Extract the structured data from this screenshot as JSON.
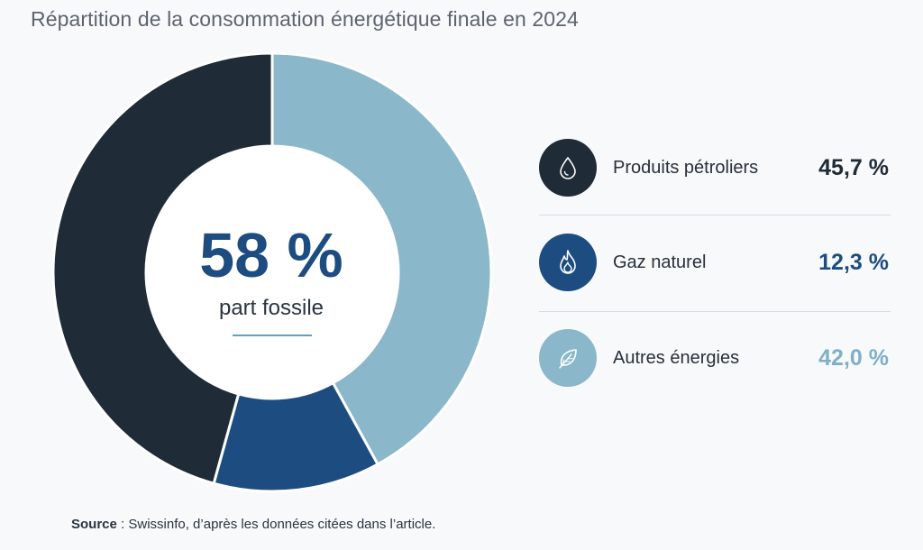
{
  "title": "Répartition de la consommation énergétique finale en 2024",
  "center": {
    "value": "58 %",
    "label": "part fossile"
  },
  "legend": [
    {
      "label": "Produits pétroliers",
      "value_text": "45,7 %",
      "icon": "drop-icon",
      "circle_color": "#1f2b36",
      "value_color": "#1f2b36"
    },
    {
      "label": "Gaz naturel",
      "value_text": "12,3 %",
      "icon": "flame-icon",
      "circle_color": "#1d4d80",
      "value_color": "#1d4d80"
    },
    {
      "label": "Autres énergies",
      "value_text": "42,0 %",
      "icon": "leaf-icon",
      "circle_color": "#8ab7ca",
      "value_color": "#7fb0c6"
    }
  ],
  "source": {
    "label": "Source",
    "text": " : Swissinfo, d’après les données citées dans l’article."
  },
  "chart_data": {
    "type": "pie",
    "title": "Répartition de la consommation énergétique finale en 2024",
    "categories": [
      "Autres énergies",
      "Gaz naturel",
      "Produits pétroliers"
    ],
    "values": [
      42.0,
      12.3,
      45.7
    ],
    "colors": [
      "#8ab7ca",
      "#1d4d80",
      "#1f2b36"
    ],
    "center_text": "58 %",
    "center_label": "part fossile"
  }
}
